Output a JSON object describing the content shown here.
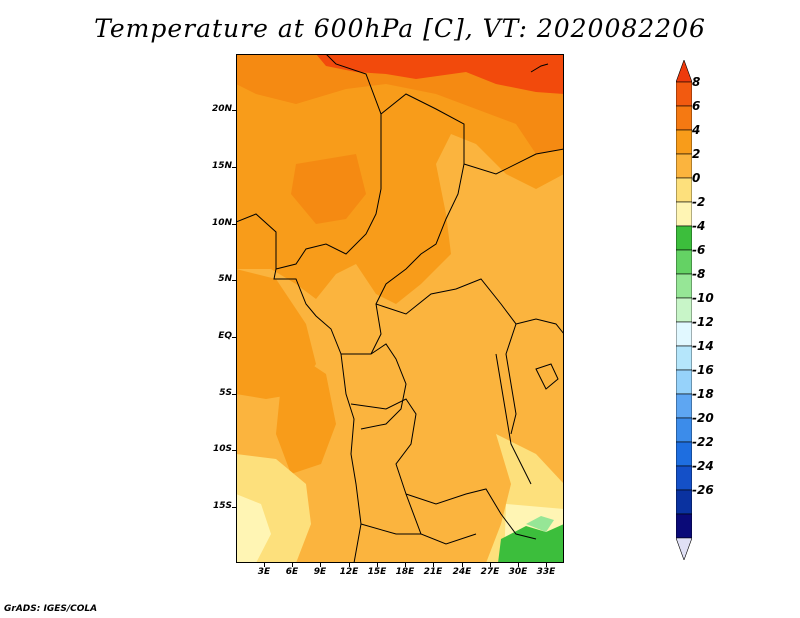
{
  "title": "Temperature at 600hPa [C], VT: 2020082206",
  "footer": "GrADS: IGES/COLA",
  "latitude_labels": [
    "20N",
    "15N",
    "10N",
    "5N",
    "EQ",
    "5S",
    "10S",
    "15S"
  ],
  "longitude_labels": [
    "3E",
    "6E",
    "9E",
    "12E",
    "15E",
    "18E",
    "21E",
    "24E",
    "27E",
    "30E",
    "33E"
  ],
  "colorbar": {
    "levels": [
      "8",
      "6",
      "4",
      "2",
      "0",
      "-2",
      "-4",
      "-6",
      "-8",
      "-10",
      "-12",
      "-14",
      "-16",
      "-18",
      "-20",
      "-22",
      "-24",
      "-26"
    ],
    "colors": [
      "#ee3a0c",
      "#f25a10",
      "#f57912",
      "#f89c1a",
      "#fbb43e",
      "#fde07c",
      "#fff5b4",
      "#3cbe3c",
      "#64d264",
      "#96e696",
      "#c8f5c8",
      "#e1f8ff",
      "#b5e6fb",
      "#96d2fa",
      "#5ea6f2",
      "#3c8cea",
      "#1e6ee0",
      "#1450c8",
      "#0a32a0",
      "#0a0a78",
      "#e0e0f5"
    ]
  },
  "field_colors": {
    "warm_red": "#f24a0c",
    "dark_orange": "#f58a12",
    "orange": "#f89c1a",
    "light_orange": "#fbb43e",
    "yellow": "#fde07c",
    "pale_yellow": "#fff5b4",
    "green": "#3cbe3c",
    "light_green": "#96e696"
  }
}
